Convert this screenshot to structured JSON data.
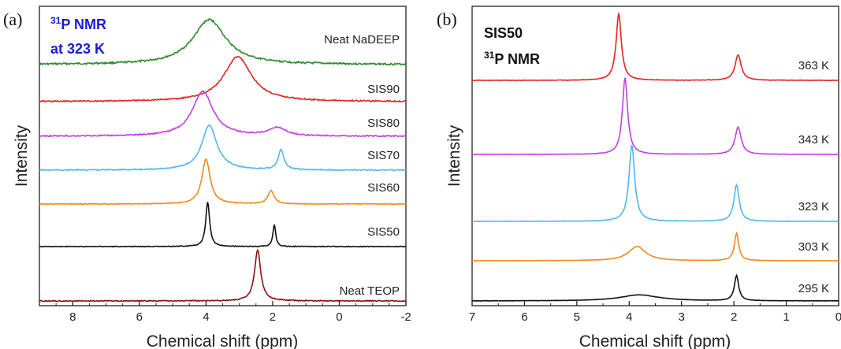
{
  "chart_data": [
    {
      "type": "line",
      "panel_label": "(a)",
      "xlabel": "Chemical shift (ppm)",
      "ylabel": "Intensity",
      "xlim": [
        9,
        -2
      ],
      "x_ticks": [
        8,
        6,
        4,
        2,
        0,
        -2
      ],
      "annotation": {
        "line1_sup": "31",
        "line1": "P NMR",
        "line2": "at 323 K",
        "color": "#1a1ad6"
      },
      "series": [
        {
          "name": "Neat NaDEEP",
          "color": "#2e8b2e",
          "peaks": [
            {
              "ppm": 3.9,
              "height": 1.0,
              "width": 1.2
            }
          ]
        },
        {
          "name": "SIS90",
          "color": "#e52222",
          "peaks": [
            {
              "ppm": 3.05,
              "height": 1.0,
              "width": 1.0
            }
          ]
        },
        {
          "name": "SIS80",
          "color": "#c33fe0",
          "peaks": [
            {
              "ppm": 4.1,
              "height": 1.0,
              "width": 0.75
            },
            {
              "ppm": 1.85,
              "height": 0.18,
              "width": 0.6
            }
          ]
        },
        {
          "name": "SIS70",
          "color": "#4fb8ee",
          "peaks": [
            {
              "ppm": 3.9,
              "height": 1.0,
              "width": 0.55
            },
            {
              "ppm": 1.75,
              "height": 0.45,
              "width": 0.2
            }
          ]
        },
        {
          "name": "SIS60",
          "color": "#f08a1c",
          "peaks": [
            {
              "ppm": 4.0,
              "height": 1.0,
              "width": 0.3
            },
            {
              "ppm": 2.05,
              "height": 0.3,
              "width": 0.22
            }
          ]
        },
        {
          "name": "SIS50",
          "color": "#111111",
          "peaks": [
            {
              "ppm": 3.95,
              "height": 1.0,
              "width": 0.14
            },
            {
              "ppm": 1.95,
              "height": 0.5,
              "width": 0.1
            }
          ]
        },
        {
          "name": "Neat TEOP",
          "color": "#8b1010",
          "peaks": [
            {
              "ppm": 2.45,
              "height": 1.0,
              "width": 0.22
            }
          ]
        }
      ]
    },
    {
      "type": "line",
      "panel_label": "(b)",
      "xlabel": "Chemical shift (ppm)",
      "ylabel": "Intensity",
      "xlim": [
        7,
        0
      ],
      "x_ticks": [
        7,
        6,
        5,
        4,
        3,
        2,
        1,
        0
      ],
      "annotation": {
        "line1": "SIS50",
        "line2_sup": "31",
        "line2": "P NMR",
        "color": "#111111"
      },
      "series": [
        {
          "name": "363 K",
          "color": "#e52222",
          "peaks": [
            {
              "ppm": 4.2,
              "height": 1.0,
              "width": 0.12
            },
            {
              "ppm": 1.92,
              "height": 0.38,
              "width": 0.14
            }
          ]
        },
        {
          "name": "343 K",
          "color": "#c33fe0",
          "peaks": [
            {
              "ppm": 4.08,
              "height": 1.0,
              "width": 0.12
            },
            {
              "ppm": 1.92,
              "height": 0.36,
              "width": 0.14
            }
          ]
        },
        {
          "name": "323 K",
          "color": "#4fb8ee",
          "peaks": [
            {
              "ppm": 3.95,
              "height": 1.0,
              "width": 0.13
            },
            {
              "ppm": 1.95,
              "height": 0.48,
              "width": 0.12
            }
          ]
        },
        {
          "name": "303 K",
          "color": "#f08a1c",
          "peaks": [
            {
              "ppm": 3.85,
              "height": 0.27,
              "width": 0.4
            },
            {
              "ppm": 1.95,
              "height": 0.52,
              "width": 0.1
            }
          ]
        },
        {
          "name": "295 K",
          "color": "#111111",
          "peaks": [
            {
              "ppm": 3.8,
              "height": 0.12,
              "width": 0.9
            },
            {
              "ppm": 1.95,
              "height": 0.5,
              "width": 0.1
            }
          ]
        }
      ]
    }
  ]
}
